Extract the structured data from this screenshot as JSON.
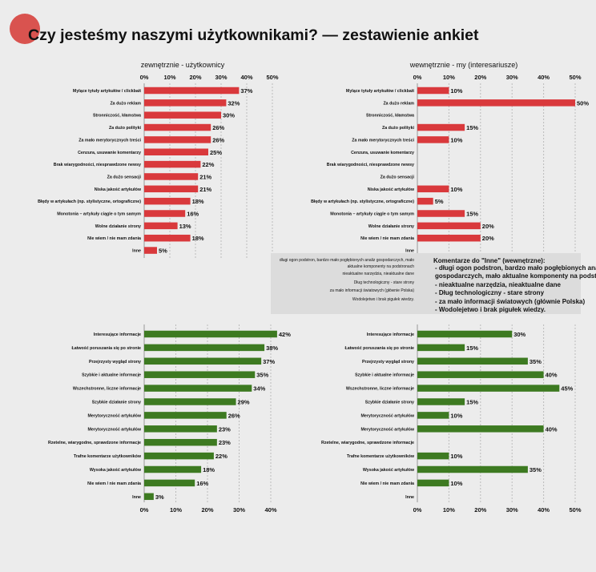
{
  "title": "Czy jesteśmy naszymi użytkownikami? — zestawienie ankiet",
  "colors": {
    "negative": "#d9393c",
    "positive": "#3d7a21",
    "background": "#ececec",
    "accent_circle": "#d9534f"
  },
  "note": {
    "title": "Komentarze do \"Inne\" (wewnętrzne):",
    "right_text": "- długi ogon podstron, bardzo mało pogłębionych analiz\ngospodarczych, mało aktualne komponenty na podstronach\n- nieaktualne narzędzia, nieaktualne dane\n- Dług technologiczny - stare strony\n- za mało informacji światowych (głównie Polska)\n- Wodolejetwo i brak pigułek wiedzy.",
    "left_lines": [
      "długi ogon podstron, bardzo mało pogłębionych analiz gospodarczych, mało aktualne komponenty na podstronach",
      "nieaktualne narzędzia, nieaktualne dane",
      "Dług technologiczny - stare strony",
      "za mało informacji światowych (głównie Polska)",
      "Wodolejetwo i brak pigułek wiedzy."
    ]
  },
  "chart_data": [
    {
      "type": "bar",
      "panel": "top-left",
      "title": "zewnętrznie - użytkownicy",
      "xlim": [
        0,
        50
      ],
      "ticks": [
        "0%",
        "10%",
        "20%",
        "30%",
        "40%",
        "50%"
      ],
      "categories": [
        "Mylące tytuły artykułów / clickbait",
        "Za dużo reklam",
        "Stronniczość, kłamstwa",
        "Za dużo polityki",
        "Za mało merytorycznych treści",
        "Cenzura, usuwanie komentarzy",
        "Brak wiarygodności, niesprawdzone newsy",
        "Za dużo sensacji",
        "Niska jakość artykułów",
        "Błędy w artykułach (np. stylistyczne, ortograficzne)",
        "Monotonia – artykuły ciągle o tym samym",
        "Wolne działanie strony",
        "Nie wiem / nie mam zdania",
        "Inne"
      ],
      "values": [
        37,
        32,
        30,
        26,
        26,
        25,
        22,
        21,
        21,
        18,
        16,
        13,
        18,
        5
      ],
      "labels": [
        "37%",
        "32%",
        "30%",
        "26%",
        "26%",
        "25%",
        "22%",
        "21%",
        "21%",
        "18%",
        "16%",
        "13%",
        "18%",
        "5%"
      ],
      "grid": true
    },
    {
      "type": "bar",
      "panel": "top-right",
      "title": "wewnętrznie - my (interesariusze)",
      "xlim": [
        0,
        50
      ],
      "ticks": [
        "0%",
        "10%",
        "20%",
        "30%",
        "40%",
        "50%"
      ],
      "categories": [
        "Mylące tytuły artykułów / clickbait",
        "Za dużo reklam",
        "Stronniczość, kłamstwa",
        "Za dużo polityki",
        "Za mało merytorycznych treści",
        "Cenzura, usuwanie komentarzy",
        "Brak wiarygodności, niesprawdzone newsy",
        "Za dużo sensacji",
        "Niska jakość artykułów",
        "Błędy w artykułach (np. stylistyczne, ortograficzne)",
        "Monotonia – artykuły ciągle o tym samym",
        "Wolne działanie strony",
        "Nie wiem / nie mam zdania",
        "Inne"
      ],
      "values": [
        10,
        50,
        0,
        15,
        10,
        0,
        0,
        0,
        10,
        5,
        15,
        20,
        20,
        0
      ],
      "labels": [
        "10%",
        "50%",
        "",
        "15%",
        "10%",
        "",
        "",
        "",
        "10%",
        "5%",
        "15%",
        "20%",
        "20%",
        ""
      ],
      "grid": true
    },
    {
      "type": "bar",
      "panel": "bottom-left",
      "xlim": [
        0,
        40
      ],
      "ticks": [
        "0%",
        "10%",
        "20%",
        "30%",
        "40%"
      ],
      "categories": [
        "Interesujące informacje",
        "Łatwość poruszania się po stronie",
        "Przejrzysty wygląd strony",
        "Szybkie i aktualne informacje",
        "Wszechstronne, liczne informacje",
        "Szybkie działanie strony",
        "Merytoryczność artykułów",
        "Merytoryczność artykułów",
        "Rzetelne, wiarygodne, sprawdzone informacje",
        "Trafne komentarze użytkowników",
        "Wysoka jakość artykułów",
        "Nie wiem / nie mam zdania",
        "Inne"
      ],
      "values": [
        42,
        38,
        37,
        35,
        34,
        29,
        26,
        23,
        23,
        22,
        18,
        16,
        3
      ],
      "labels": [
        "42%",
        "38%",
        "37%",
        "35%",
        "34%",
        "29%",
        "26%",
        "23%",
        "23%",
        "22%",
        "18%",
        "16%",
        "3%"
      ],
      "grid": true
    },
    {
      "type": "bar",
      "panel": "bottom-right",
      "xlim": [
        0,
        50
      ],
      "ticks": [
        "0%",
        "10%",
        "20%",
        "30%",
        "40%",
        "50%"
      ],
      "categories": [
        "Interesujące informacje",
        "Łatwość poruszania się po stronie",
        "Przejrzysty wygląd strony",
        "Szybkie i aktualne informacje",
        "Wszechstronne, liczne informacje",
        "Szybkie działanie strony",
        "Merytoryczność artykułów",
        "Merytoryczność artykułów",
        "Rzetelne, wiarygodne, sprawdzone informacje",
        "Trafne komentarze użytkowników",
        "Wysoka jakość artykułów",
        "Nie wiem / nie mam zdania",
        "Inne"
      ],
      "values": [
        30,
        15,
        35,
        40,
        45,
        15,
        10,
        40,
        0,
        10,
        35,
        10,
        0
      ],
      "labels": [
        "30%",
        "15%",
        "35%",
        "40%",
        "45%",
        "15%",
        "10%",
        "40%",
        "",
        "10%",
        "35%",
        "10%",
        ""
      ],
      "grid": true
    }
  ]
}
